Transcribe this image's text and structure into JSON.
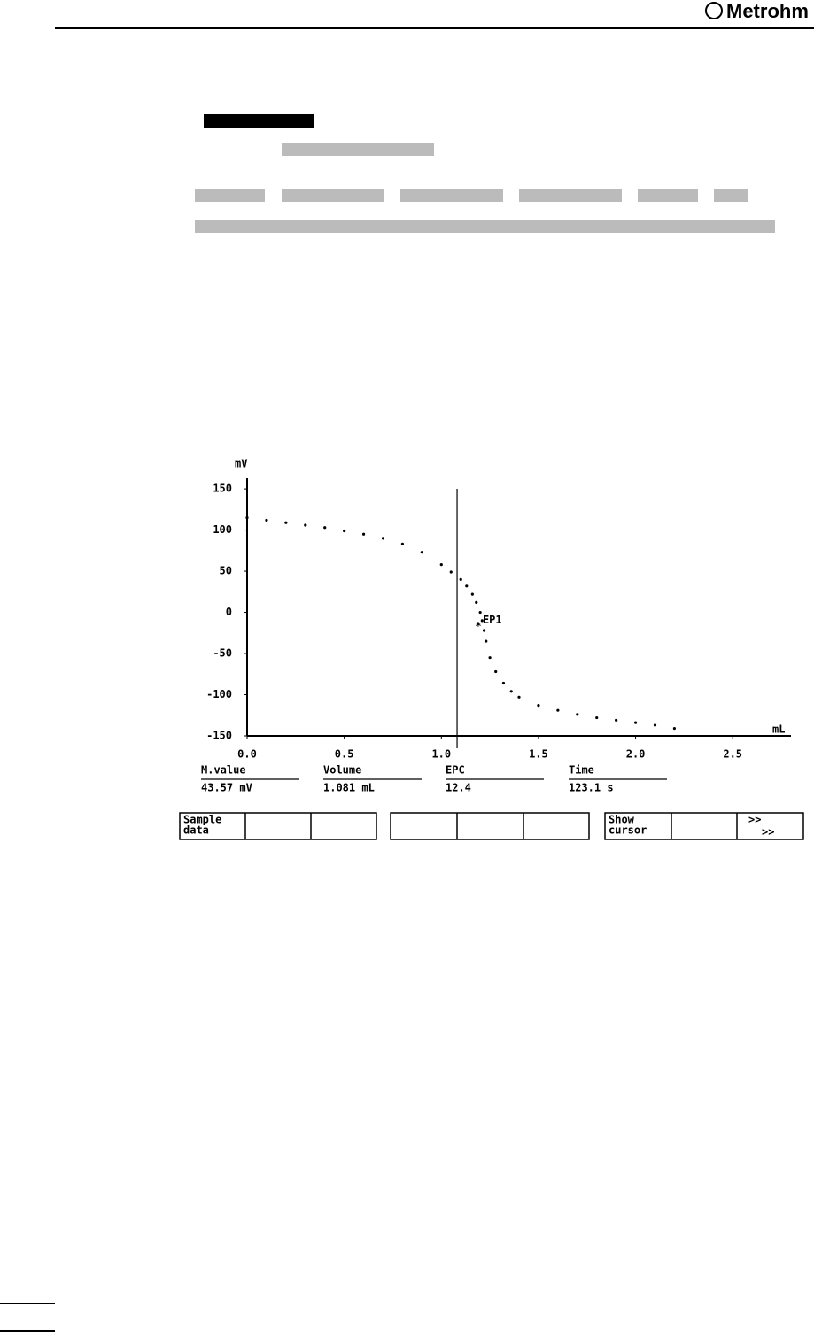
{
  "header": {
    "brand": "Metrohm"
  },
  "chart_data": {
    "type": "line",
    "y_label": "mV",
    "x_label": "mL",
    "x": [
      0,
      0.1,
      0.2,
      0.3,
      0.4,
      0.5,
      0.6,
      0.7,
      0.8,
      0.9,
      1.0,
      1.05,
      1.1,
      1.13,
      1.16,
      1.18,
      1.2,
      1.21,
      1.22,
      1.23,
      1.25,
      1.28,
      1.32,
      1.36,
      1.4,
      1.5,
      1.6,
      1.7,
      1.8,
      1.9,
      2.0,
      2.1,
      2.2
    ],
    "series": [
      {
        "name": "mV",
        "color": "#000000",
        "values": [
          115,
          112,
          109,
          106,
          103,
          99,
          95,
          90,
          83,
          73,
          58,
          49,
          40,
          32,
          22,
          12,
          0,
          -10,
          -22,
          -35,
          -55,
          -72,
          -86,
          -96,
          -103,
          -113,
          -119,
          -124,
          -128,
          -131,
          -134,
          -137,
          -141
        ]
      }
    ],
    "xlim": [
      0,
      2.8
    ],
    "ylim": [
      -150,
      163
    ],
    "xticks": [
      {
        "value": 0,
        "label": "0.0"
      },
      0.5,
      {
        "value": 1,
        "label": "1.0"
      },
      1.5,
      {
        "value": 2,
        "label": "2.0"
      },
      2.5
    ],
    "yticks": [
      150,
      100,
      50,
      0,
      -50,
      -100,
      -150
    ],
    "cursor_x": 1.081,
    "annotations": [
      {
        "text": "EP1",
        "x": 1.19,
        "y": -17
      }
    ]
  },
  "readouts": [
    {
      "label": "M.value",
      "value": "43.57 mV"
    },
    {
      "label": "Volume",
      "value": "1.081 mL"
    },
    {
      "label": "EPC",
      "value": "12.4"
    },
    {
      "label": "Time",
      "value": "123.1 s"
    }
  ],
  "softkeys": {
    "first": [
      "Sample",
      "data"
    ],
    "seventh": [
      "Show",
      "cursor"
    ],
    "last": [
      ">>",
      ">>"
    ]
  }
}
